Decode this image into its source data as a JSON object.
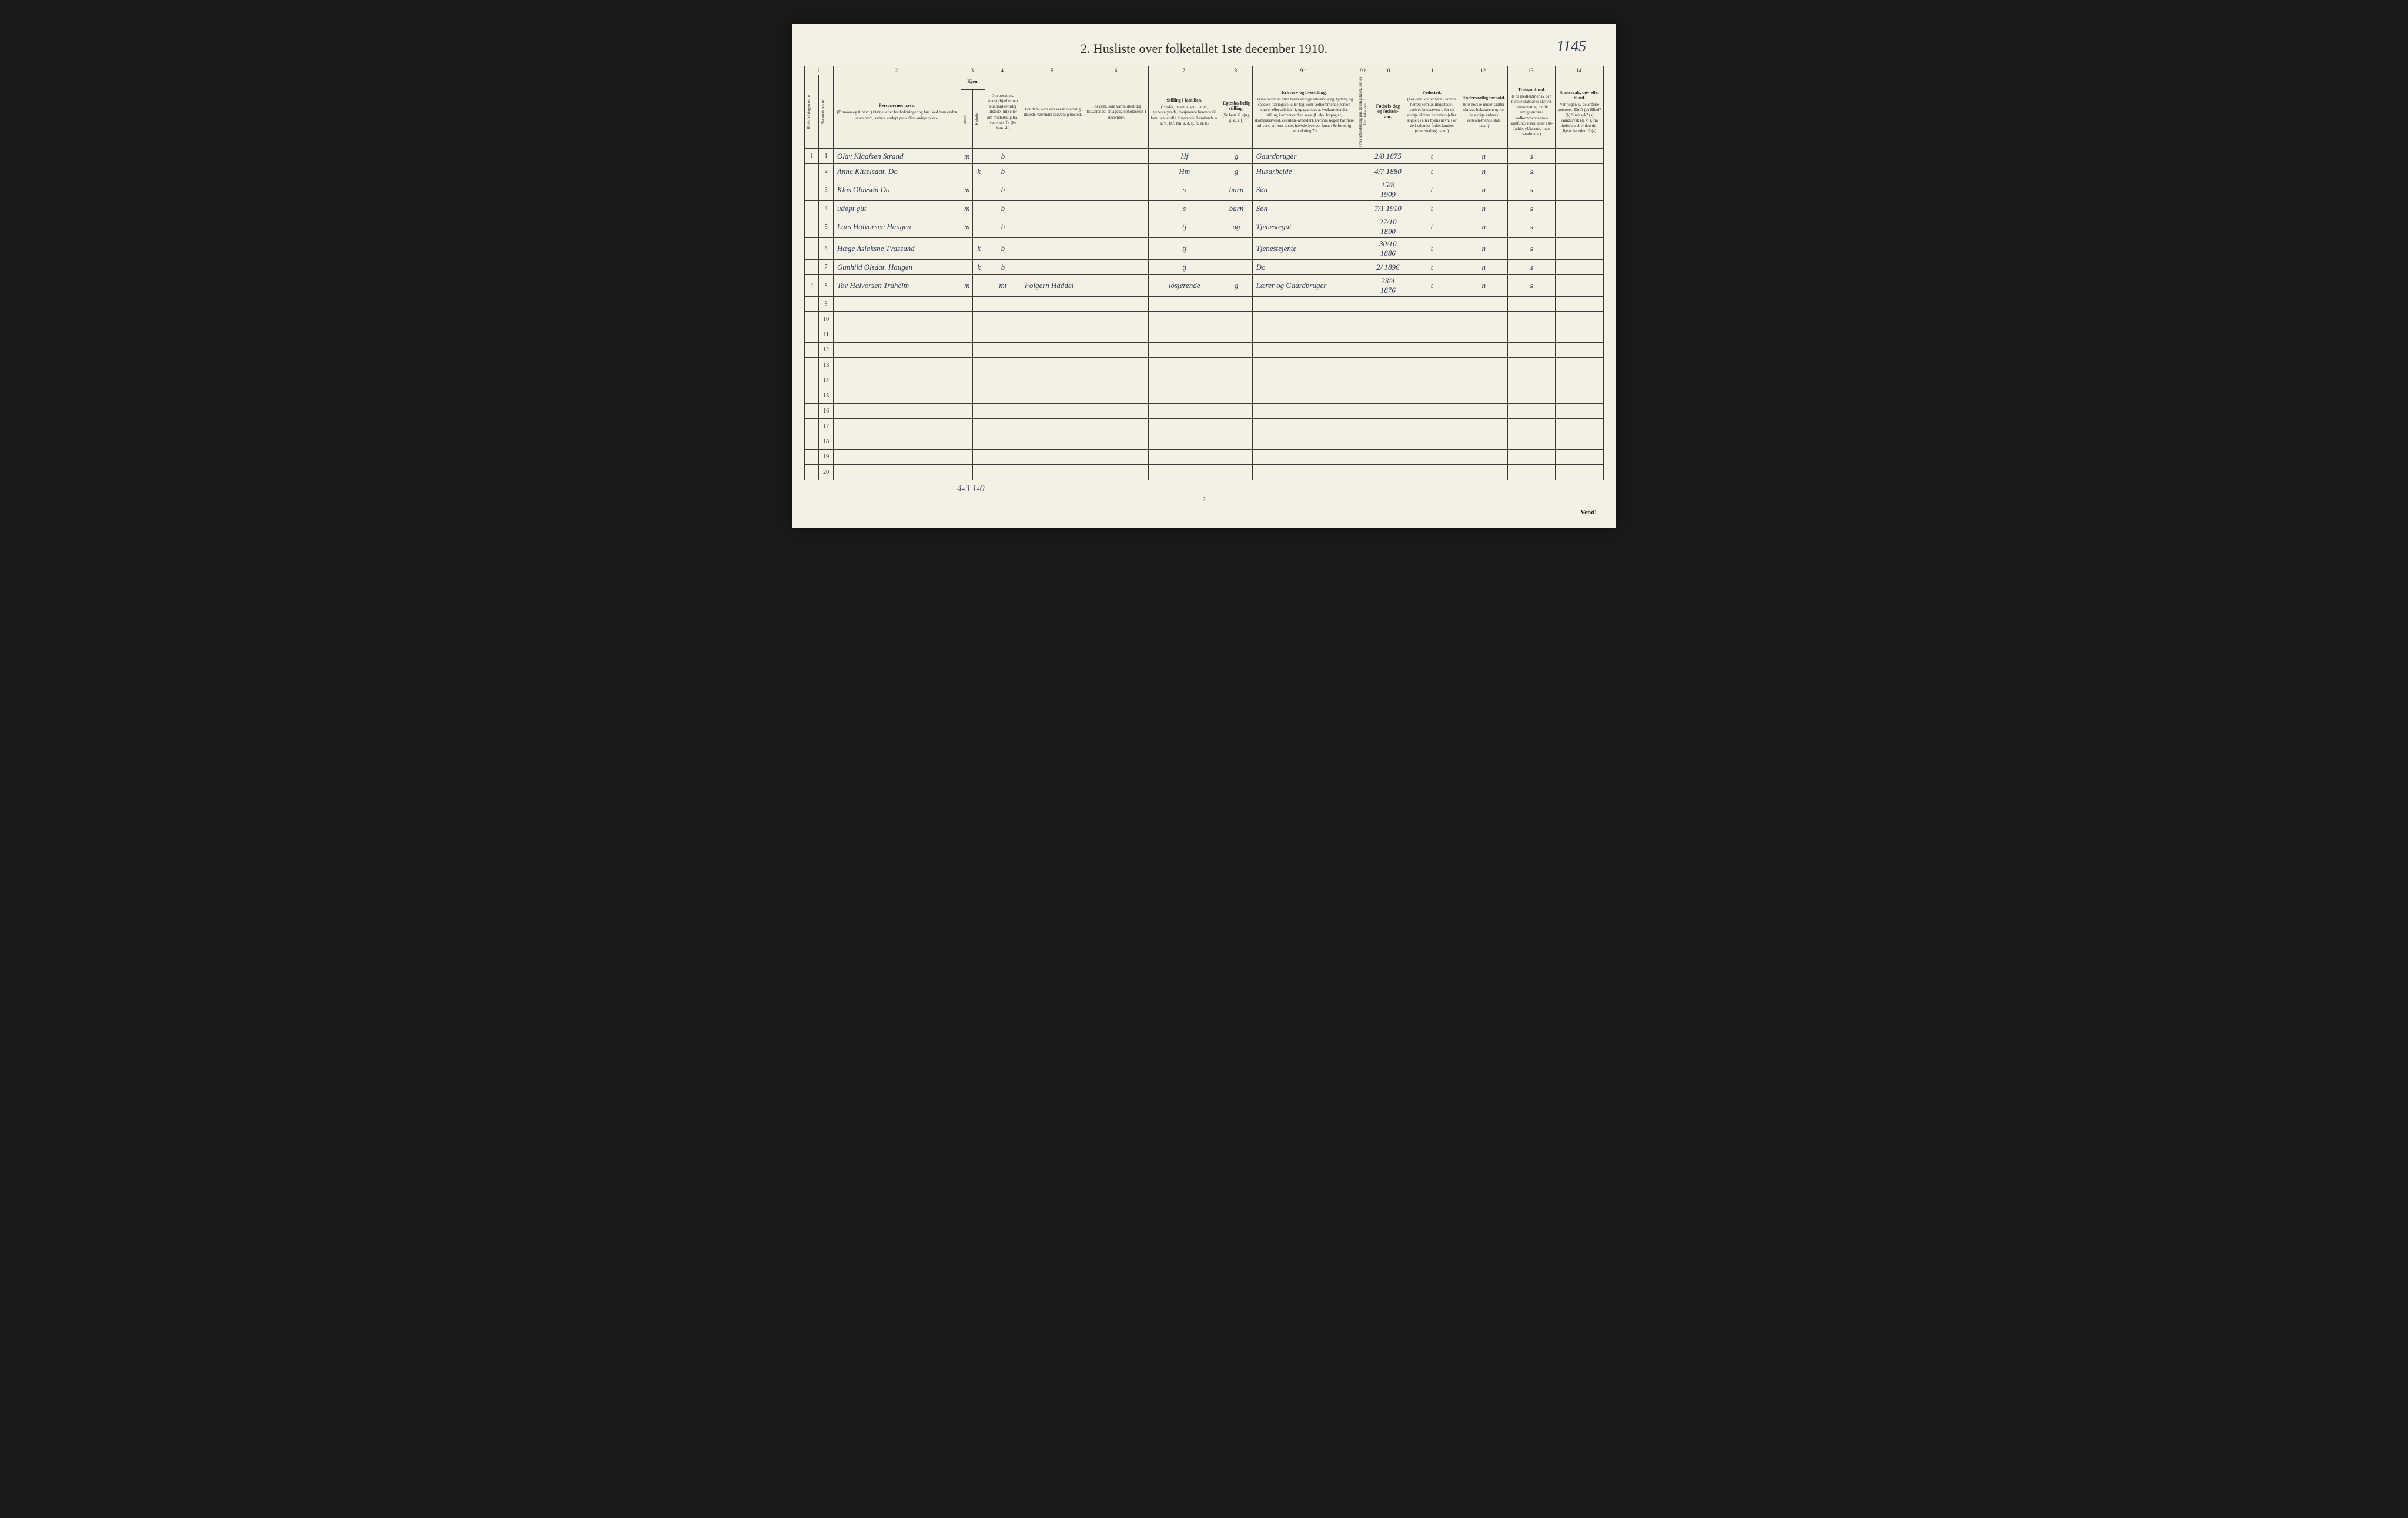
{
  "title": "2. Husliste over folketallet 1ste december 1910.",
  "handwritten_page_number": "1145",
  "footer_handwritten": "4-3  1-0",
  "page_number_bottom": "2",
  "vend": "Vend!",
  "colors": {
    "page_bg": "#f4f0e4",
    "border": "#3a3a3a",
    "ink": "#2a3a5a",
    "print": "#2a2a2a"
  },
  "column_numbers": [
    "1.",
    "2.",
    "3.",
    "4.",
    "5.",
    "6.",
    "7.",
    "8.",
    "9 a.",
    "9 b.",
    "10.",
    "11.",
    "12.",
    "13.",
    "14."
  ],
  "headers": {
    "c1a": "Husholdningernes nr.",
    "c1b": "Personernes nr.",
    "c2_strong": "Personernes navn.",
    "c2_sub": "(Fornavn og tilnavn.) Ordnet efter husholdninger og hus. Ved barn endnu uden navn, sættes: «udøpt gut» eller «udøpt pike».",
    "c3_strong": "Kjøn.",
    "c3a": "Mand.",
    "c3b": "Kvinde.",
    "c3_sub": "m. k.",
    "c4": "Om bosat paa stedet (b) eller om kun midler-tidig tilstede (mt) eller om midlertidig fra-værende (f). (Se bem. 4.)",
    "c5": "For dem, som kun var midlertidig tilstede-værende: sedvanlig bosted.",
    "c6": "For dem, som var midlertidig fraværende: antagelig opholdssted 1 december.",
    "c7_strong": "Stilling i familien.",
    "c7_sub": "(Husfar, husmor, søn, datter, tjenestetyende, lo-sjerende hørende til familien, enslig losjerende, besøkende o. s. v.) (hf, hm, s, d, tj, fl, el, b)",
    "c8_strong": "Egteska-belig stilling.",
    "c8_sub": "(Se bem. 6.) (ug, g, e, s, f)",
    "c9a_strong": "Erhverv og livsstilling.",
    "c9a_sub": "Ogsaa husmors eller barns særlige erhverv. Angi tydelig og specielt næringsvei eller fag, som vedkommende person utøver eller arbeider i, og saaledes at vedkommendes stilling i erhvervet kan sees, (f. eks. forpagter, skomakersvend, cellulose-arbeider). Dersom nogen har flere erhverv, anføres disse, hovederhvervet først. (Se forøvrig bemerkning 7.)",
    "c9b": "Hvis arbeidsledig paa tællingstiden, sættes her bokstaven l.",
    "c10_strong": "Fødsels-dag og fødsels-aar.",
    "c11_strong": "Fødested.",
    "c11_sub": "(For dem, der er født i samme herred som tællingsstedet, skrives bokstaven: t; for de øvrige skrives herredets (eller sognets) eller byens navn. For de i utlandet fødte: landets (eller stedets) navn.)",
    "c12_strong": "Undersaatlig forhold.",
    "c12_sub": "(For norske under-saatter skrives bokstaven: n; for de øvrige anføres vedkom-mende stats navn.)",
    "c13_strong": "Trossamfund.",
    "c13_sub": "(For medlemmer av den norske statskirke skrives bokstaven: s; for de øvrige anføres vedkommende tros-samfunds navn, eller i til-fælde: «Uttraadt, intet samfund».)",
    "c14_strong": "Sindssvak, døv eller blind.",
    "c14_sub": "Var nogen av de anførte personer: Døv? (d) Blind? (b) Sindssyk? (s) Aandssvak (d. v. s. fra fødselen eller den tid-ligste barndom)? (a)"
  },
  "rows": [
    {
      "hnr": "1",
      "pnr": "1",
      "name": "Olav Klaafsen Strand",
      "sex": "m",
      "res": "b",
      "c5": "",
      "c6": "",
      "fam": "Hf",
      "marital": "g",
      "occ": "Gaardbruger",
      "led": "",
      "birth": "2/8 1875",
      "born": "t",
      "nat": "n",
      "rel": "s",
      "dis": ""
    },
    {
      "hnr": "",
      "pnr": "2",
      "name": "Anne Kittelsdat. Do",
      "sex": "k",
      "res": "b",
      "c5": "",
      "c6": "",
      "fam": "Hm",
      "marital": "g",
      "occ": "Husarbeide",
      "led": "",
      "birth": "4/7 1880",
      "born": "t",
      "nat": "n",
      "rel": "s",
      "dis": ""
    },
    {
      "hnr": "",
      "pnr": "3",
      "name": "Klas Olavsøn Do",
      "sex": "m",
      "res": "b",
      "c5": "",
      "c6": "",
      "fam": "s",
      "marital": "barn",
      "occ": "Søn",
      "led": "",
      "birth": "15/8 1909",
      "born": "t",
      "nat": "n",
      "rel": "s",
      "dis": ""
    },
    {
      "hnr": "",
      "pnr": "4",
      "name": "udøpt gut",
      "sex": "m",
      "res": "b",
      "c5": "",
      "c6": "",
      "fam": "s",
      "marital": "barn",
      "occ": "Søn",
      "led": "",
      "birth": "7/1 1910",
      "born": "t",
      "nat": "n",
      "rel": "s",
      "dis": ""
    },
    {
      "hnr": "",
      "pnr": "5",
      "name": "Lars Halvorsen Haugen",
      "sex": "m",
      "res": "b",
      "c5": "",
      "c6": "",
      "fam": "tj",
      "marital": "ug",
      "occ": "Tjenestegut",
      "led": "",
      "birth": "27/10 1890",
      "born": "t",
      "nat": "n",
      "rel": "s",
      "dis": ""
    },
    {
      "hnr": "",
      "pnr": "6",
      "name": "Hæge Aslaksne Tvassund",
      "sex": "k",
      "res": "b",
      "c5": "",
      "c6": "",
      "fam": "tj",
      "marital": "",
      "occ": "Tjenestejente",
      "led": "",
      "birth": "30/10 1886",
      "born": "t",
      "nat": "n",
      "rel": "s",
      "dis": ""
    },
    {
      "hnr": "",
      "pnr": "7",
      "name": "Gunhild Olsdat. Haugen",
      "sex": "k",
      "res": "b",
      "c5": "",
      "c6": "",
      "fam": "tj",
      "marital": "",
      "occ": "Do",
      "led": "",
      "birth": "2/ 1896",
      "born": "t",
      "nat": "n",
      "rel": "s",
      "dis": ""
    },
    {
      "hnr": "2",
      "pnr": "8",
      "name": "Tov Halvorsen Traheim",
      "sex": "m",
      "res": "mt",
      "c5": "Folgern Haddel",
      "c6": "",
      "fam": "losjerende",
      "marital": "g",
      "occ": "Lærer og Gaardbruger",
      "led": "",
      "birth": "23/4 1876",
      "born": "t",
      "nat": "n",
      "rel": "s",
      "dis": ""
    }
  ],
  "empty_row_numbers": [
    "9",
    "10",
    "11",
    "12",
    "13",
    "14",
    "15",
    "16",
    "17",
    "18",
    "19",
    "20"
  ]
}
